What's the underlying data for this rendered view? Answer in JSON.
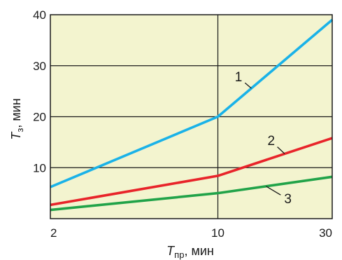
{
  "chart_data": {
    "type": "line",
    "xscale": "log",
    "xlim": [
      2,
      30
    ],
    "ylim": [
      0,
      40
    ],
    "grid": true,
    "background": "#f3f4cf",
    "x_ticks": [
      {
        "value": 2,
        "label": "2"
      },
      {
        "value": 10,
        "label": "10"
      },
      {
        "value": 30,
        "label": "30"
      }
    ],
    "y_ticks": [
      {
        "value": 10,
        "label": "10"
      },
      {
        "value": 20,
        "label": "20"
      },
      {
        "value": 30,
        "label": "30"
      },
      {
        "value": 40,
        "label": "40"
      }
    ],
    "xlabel": {
      "main": "T",
      "sub": "пр",
      "unit": ", мин"
    },
    "ylabel": {
      "main": "T",
      "sub": "з",
      "unit": ", мин"
    },
    "series": [
      {
        "name": "1",
        "color": "#1ab2e8",
        "x": [
          2,
          10,
          30
        ],
        "y": [
          6.2,
          20,
          39
        ]
      },
      {
        "name": "2",
        "color": "#e8242a",
        "x": [
          2,
          10,
          30
        ],
        "y": [
          2.7,
          8.4,
          15.8
        ]
      },
      {
        "name": "3",
        "color": "#21a349",
        "x": [
          2,
          10,
          30
        ],
        "y": [
          1.7,
          5.0,
          8.2
        ]
      }
    ],
    "annotations": [
      {
        "label": "1",
        "series": 0,
        "x": 13.8,
        "label_x": 12.2,
        "label_y": 27.7
      },
      {
        "label": "2",
        "series": 1,
        "x": 19.0,
        "label_x": 16.7,
        "label_y": 15.2
      },
      {
        "label": "3",
        "series": 2,
        "x": 15.9,
        "label_x": 19.6,
        "label_y": 3.8
      }
    ]
  }
}
